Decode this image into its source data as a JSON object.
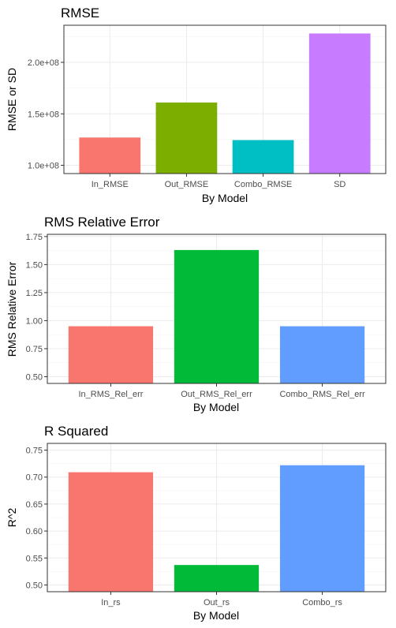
{
  "chart_data": [
    {
      "type": "bar",
      "title": "RMSE",
      "xlabel": "By Model",
      "ylabel": "RMSE or SD",
      "categories": [
        "In_RMSE",
        "Out_RMSE",
        "Combo_RMSE",
        "SD"
      ],
      "values": [
        127000000,
        161000000,
        124500000,
        228000000
      ],
      "colors": [
        "#F8766D",
        "#7CAE00",
        "#00BFC4",
        "#C77CFF"
      ],
      "ylim": [
        92000000,
        236000000
      ],
      "bar_base": 92000000,
      "yticks": [
        100000000,
        150000000,
        200000000
      ],
      "yticklabels": [
        "1.0e+08",
        "1.5e+08",
        "2.0e+08"
      ],
      "grid": true
    },
    {
      "type": "bar",
      "title": "RMS Relative Error",
      "xlabel": "By Model",
      "ylabel": "RMS Relative Error",
      "categories": [
        "In_RMS_Rel_err",
        "Out_RMS_Rel_err",
        "Combo_RMS_Rel_err"
      ],
      "values": [
        0.95,
        1.63,
        0.95
      ],
      "colors": [
        "#F8766D",
        "#00BA38",
        "#619CFF"
      ],
      "ylim": [
        0.44,
        1.77
      ],
      "bar_base": 0.44,
      "yticks": [
        0.5,
        0.75,
        1.0,
        1.25,
        1.5,
        1.75
      ],
      "yticklabels": [
        "0.50",
        "0.75",
        "1.00",
        "1.25",
        "1.50",
        "1.75"
      ],
      "grid": true
    },
    {
      "type": "bar",
      "title": "R Squared",
      "xlabel": "By Model",
      "ylabel": "R^2",
      "categories": [
        "In_rs",
        "Out_rs",
        "Combo_rs"
      ],
      "values": [
        0.709,
        0.537,
        0.722
      ],
      "colors": [
        "#F8766D",
        "#00BA38",
        "#619CFF"
      ],
      "ylim": [
        0.4875,
        0.7625
      ],
      "bar_base": 0.4875,
      "yticks": [
        0.5,
        0.55,
        0.6,
        0.65,
        0.7,
        0.75
      ],
      "yticklabels": [
        "0.50",
        "0.55",
        "0.60",
        "0.65",
        "0.70",
        "0.75"
      ],
      "grid": true
    }
  ]
}
